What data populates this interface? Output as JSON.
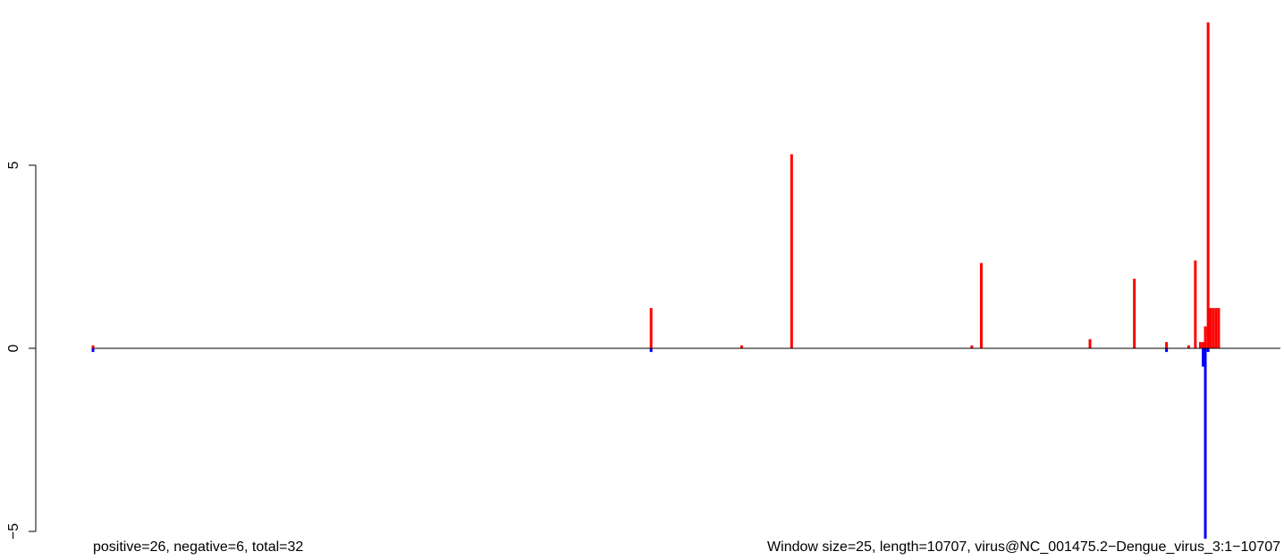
{
  "chart_data": {
    "type": "bar",
    "title": "",
    "x_range": [
      1,
      10707
    ],
    "ylim": [
      -5.2,
      9
    ],
    "y_ticks": [
      {
        "value": 5,
        "label": "5"
      },
      {
        "value": 0,
        "label": "0"
      },
      {
        "value": -5,
        "label": "−5"
      }
    ],
    "colors": {
      "positive": "#ff0000",
      "negative": "#0000ff",
      "baseline": "#000000"
    },
    "positive_bars": [
      {
        "x": 1,
        "value": 0.08
      },
      {
        "x": 5033,
        "value": 1.1
      },
      {
        "x": 5850,
        "value": 0.08
      },
      {
        "x": 6300,
        "value": 5.3
      },
      {
        "x": 7925,
        "value": 0.08
      },
      {
        "x": 8010,
        "value": 2.33
      },
      {
        "x": 8990,
        "value": 0.25
      },
      {
        "x": 9390,
        "value": 1.9
      },
      {
        "x": 9680,
        "value": 0.17
      },
      {
        "x": 9880,
        "value": 0.08
      },
      {
        "x": 9940,
        "value": 2.4
      },
      {
        "x": 9985,
        "value": 0.17
      },
      {
        "x": 10010,
        "value": 0.17
      },
      {
        "x": 10030,
        "value": 0.6
      },
      {
        "x": 10055,
        "value": 8.9
      },
      {
        "x": 10075,
        "value": 1.1
      },
      {
        "x": 10100,
        "value": 1.1
      },
      {
        "x": 10125,
        "value": 1.1
      },
      {
        "x": 10150,
        "value": 1.1
      }
    ],
    "negative_bars": [
      {
        "x": 1,
        "value": -0.1
      },
      {
        "x": 5033,
        "value": -0.1
      },
      {
        "x": 9680,
        "value": -0.1
      },
      {
        "x": 10010,
        "value": -0.5
      },
      {
        "x": 10030,
        "value": -5.2
      },
      {
        "x": 10055,
        "value": -0.1
      }
    ],
    "notes": {
      "left": "positive=26, negative=6, total=32",
      "right": "Window size=25, length=10707, virus@NC_001475.2−Dengue_virus_3:1−10707"
    }
  }
}
